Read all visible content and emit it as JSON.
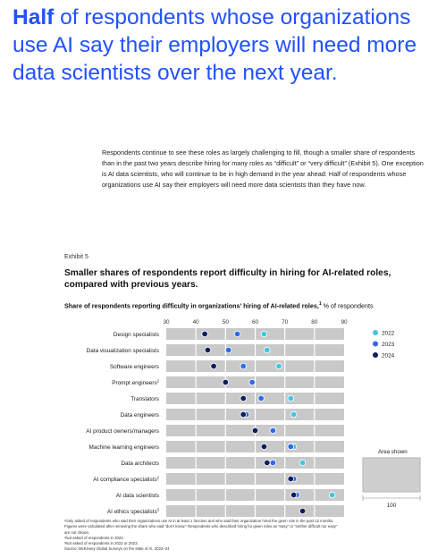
{
  "headline": {
    "highlight": "Half",
    "rest": " of respondents whose organizations use AI say their employers will need more data scientists over the next year."
  },
  "intro": "Respondents continue to see these roles as largely challenging to fill, though a smaller share of respondents than in the past two years describe hiring for many roles as “difficult” or “very difficult” (Exhibit 5). One exception is AI data scientists, who will continue to be in high demand in the year ahead: Half of respondents whose organizations use AI say their employers will need more data scientists than they have now.",
  "exhibit": "Exhibit 5",
  "chart_title": "Smaller shares of respondents report difficulty in hiring for AI-related roles, compared with previous years.",
  "subtitle": {
    "main": "Share of respondents reporting difficulty in organizations’ hiring of AI-related roles,",
    "sup": "1",
    "unit": " % of respondents"
  },
  "area_shown": {
    "label": "Area shown",
    "value": "100"
  },
  "footnotes": [
    "¹Only asked of respondents who said their organizations use AI in at least 1 function and who said their organization hired the given role in the past 12 months.",
    "  Figures were calculated after removing the share who said “don’t know.” Respondents who described hiring for given roles as “easy” or “neither difficult nor easy”",
    "  are not shown.",
    "²Not asked of respondents in 2022.",
    "³Not asked of respondents in 2022 or 2023.",
    "Source: McKinsey Global Surveys on the state of AI, 2022–24"
  ],
  "chart_data": {
    "type": "scatter",
    "xlim": [
      30,
      90
    ],
    "xticks": [
      30,
      40,
      50,
      60,
      70,
      80,
      90
    ],
    "grid": true,
    "legend_position": "right",
    "categories": [
      {
        "label": "Design specialists",
        "sup": ""
      },
      {
        "label": "Data visualization specialists",
        "sup": ""
      },
      {
        "label": "Software engineers",
        "sup": ""
      },
      {
        "label": "Prompt engineers",
        "sup": "2"
      },
      {
        "label": "Translators",
        "sup": ""
      },
      {
        "label": "Data engineers",
        "sup": ""
      },
      {
        "label": "AI product owners/managers",
        "sup": ""
      },
      {
        "label": "Machine learning engineers",
        "sup": ""
      },
      {
        "label": "Data architects",
        "sup": ""
      },
      {
        "label": "AI compliance specialists",
        "sup": "2"
      },
      {
        "label": "AI data scientists",
        "sup": ""
      },
      {
        "label": "AI ethics specialists",
        "sup": "3"
      }
    ],
    "series": [
      {
        "name": "2022",
        "color": "#3fc6e0",
        "values": [
          63,
          64,
          68,
          null,
          72,
          73,
          66,
          73,
          76,
          null,
          86,
          null
        ]
      },
      {
        "name": "2023",
        "color": "#2e6be6",
        "values": [
          54,
          51,
          56,
          59,
          62,
          57,
          66,
          72,
          66,
          73,
          74,
          null
        ]
      },
      {
        "name": "2024",
        "color": "#0a1f5c",
        "values": [
          43,
          44,
          46,
          50,
          56,
          56,
          60,
          63,
          64,
          72,
          73,
          76
        ]
      }
    ]
  }
}
